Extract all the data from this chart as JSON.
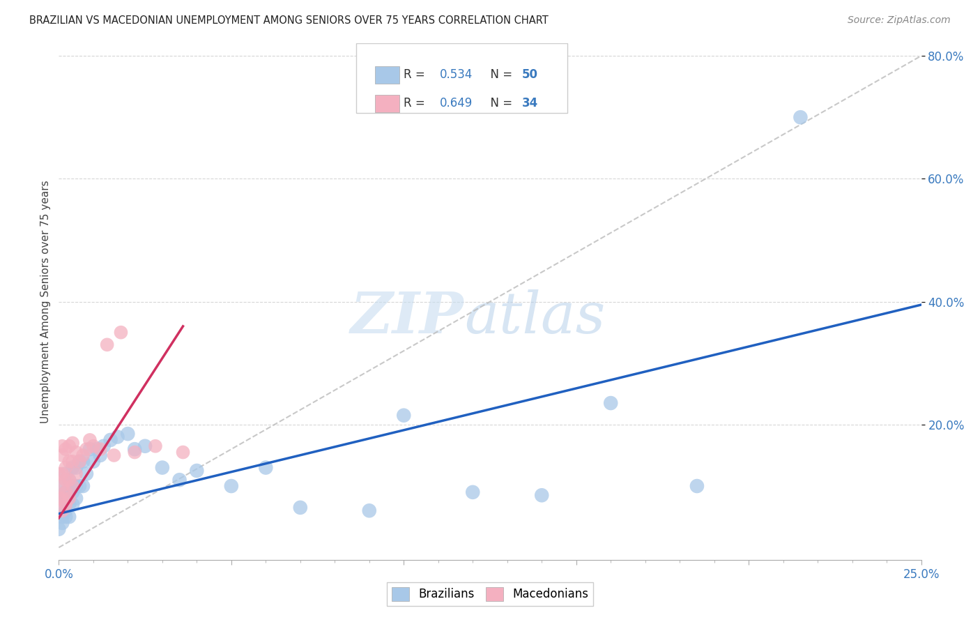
{
  "title": "BRAZILIAN VS MACEDONIAN UNEMPLOYMENT AMONG SENIORS OVER 75 YEARS CORRELATION CHART",
  "source": "Source: ZipAtlas.com",
  "ylabel": "Unemployment Among Seniors over 75 years",
  "xlim": [
    0,
    0.25
  ],
  "ylim": [
    -0.02,
    0.82
  ],
  "brazil_color": "#a8c8e8",
  "maced_color": "#f4b0c0",
  "brazil_line_color": "#2060c0",
  "maced_line_color": "#d03060",
  "watermark_zip": "ZIP",
  "watermark_atlas": "atlas",
  "background_color": "#ffffff",
  "grid_color": "#cccccc",
  "brazil_x": [
    0.0,
    0.001,
    0.001,
    0.001,
    0.001,
    0.001,
    0.002,
    0.002,
    0.002,
    0.002,
    0.002,
    0.003,
    0.003,
    0.003,
    0.003,
    0.004,
    0.004,
    0.004,
    0.004,
    0.005,
    0.005,
    0.005,
    0.006,
    0.006,
    0.007,
    0.007,
    0.008,
    0.009,
    0.01,
    0.011,
    0.012,
    0.013,
    0.015,
    0.017,
    0.02,
    0.022,
    0.025,
    0.03,
    0.035,
    0.04,
    0.05,
    0.06,
    0.07,
    0.09,
    0.1,
    0.12,
    0.14,
    0.16,
    0.185,
    0.215
  ],
  "brazil_y": [
    0.03,
    0.04,
    0.05,
    0.06,
    0.08,
    0.1,
    0.05,
    0.06,
    0.08,
    0.09,
    0.12,
    0.05,
    0.07,
    0.09,
    0.11,
    0.07,
    0.09,
    0.1,
    0.13,
    0.08,
    0.1,
    0.13,
    0.1,
    0.14,
    0.1,
    0.14,
    0.12,
    0.16,
    0.14,
    0.16,
    0.15,
    0.165,
    0.175,
    0.18,
    0.185,
    0.16,
    0.165,
    0.13,
    0.11,
    0.125,
    0.1,
    0.13,
    0.065,
    0.06,
    0.215,
    0.09,
    0.085,
    0.235,
    0.1,
    0.7
  ],
  "maced_x": [
    0.0,
    0.0,
    0.001,
    0.001,
    0.001,
    0.001,
    0.001,
    0.001,
    0.002,
    0.002,
    0.002,
    0.002,
    0.002,
    0.003,
    0.003,
    0.003,
    0.003,
    0.004,
    0.004,
    0.004,
    0.005,
    0.005,
    0.006,
    0.007,
    0.008,
    0.009,
    0.01,
    0.012,
    0.014,
    0.016,
    0.018,
    0.022,
    0.028,
    0.036
  ],
  "maced_y": [
    0.08,
    0.12,
    0.06,
    0.08,
    0.1,
    0.12,
    0.15,
    0.165,
    0.07,
    0.09,
    0.11,
    0.13,
    0.16,
    0.08,
    0.11,
    0.14,
    0.165,
    0.1,
    0.14,
    0.17,
    0.12,
    0.155,
    0.14,
    0.15,
    0.16,
    0.175,
    0.165,
    0.16,
    0.33,
    0.15,
    0.35,
    0.155,
    0.165,
    0.155
  ]
}
